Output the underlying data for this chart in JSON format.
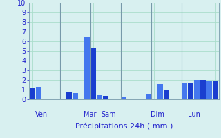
{
  "title": "",
  "xlabel": "Précipitations 24h ( mm )",
  "background_color": "#d8f0f0",
  "bar_color_dark": "#1a3ecf",
  "bar_color_light": "#4477ee",
  "grid_color": "#aaddcc",
  "vline_color": "#7799aa",
  "ylim": [
    0,
    10
  ],
  "yticks": [
    0,
    1,
    2,
    3,
    4,
    5,
    6,
    7,
    8,
    9,
    10
  ],
  "day_labels": [
    "Ven",
    "Mar",
    "Sam",
    "Dim",
    "Lun"
  ],
  "day_positions": [
    1.5,
    9.5,
    12.5,
    20.5,
    26.5
  ],
  "values": [
    1.2,
    1.3,
    0,
    0,
    0,
    0,
    0.7,
    0.65,
    0,
    6.5,
    5.3,
    0.45,
    0.35,
    0,
    0,
    0.3,
    0,
    0,
    0,
    0.55,
    0,
    1.6,
    0.9,
    0,
    0,
    1.65,
    1.65,
    2.0,
    2.0,
    1.85,
    1.85
  ],
  "n_bars": 31,
  "vline_positions": [
    4.5,
    9.5,
    14.5,
    19.5,
    24.5
  ],
  "text_color": "#2222cc",
  "tick_color": "#2222cc",
  "xlabel_fontsize": 8,
  "day_label_fontsize": 7,
  "ytick_fontsize": 7
}
